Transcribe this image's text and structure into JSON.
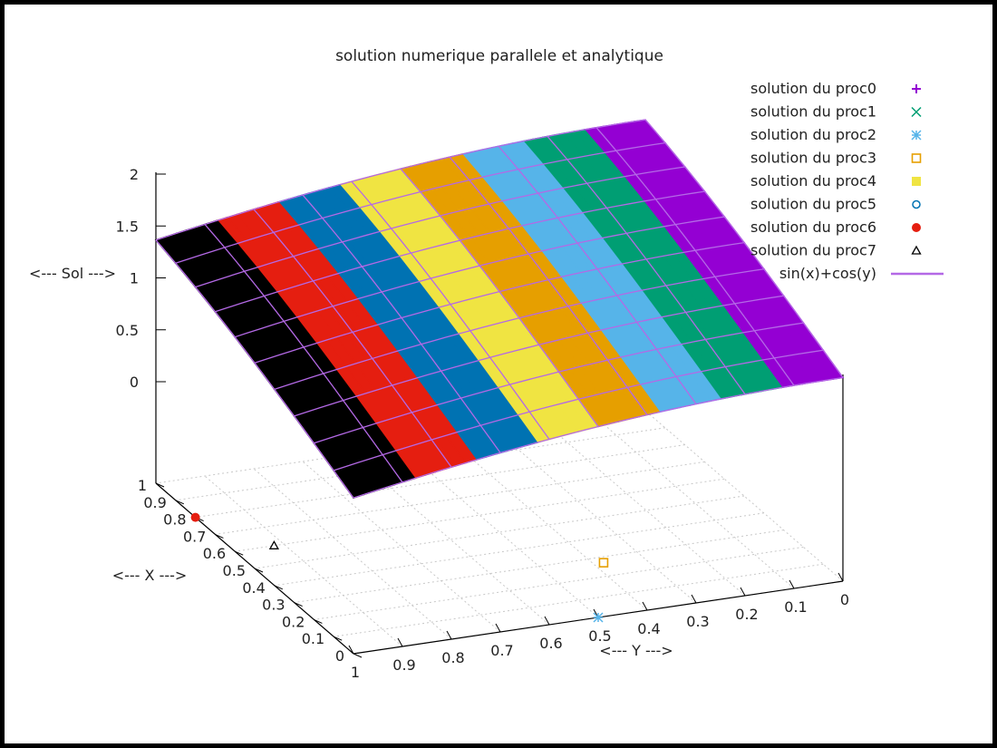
{
  "chart_data": {
    "type": "surface3d",
    "title": "solution numerique parallele et analytique",
    "xlabel": "<--- X --->",
    "ylabel": "<--- Y --->",
    "zlabel": "<--- Sol --->",
    "xlim": [
      0,
      1
    ],
    "ylim": [
      0,
      1
    ],
    "zlim": [
      0,
      2
    ],
    "x_ticks": [
      "0",
      "0.1",
      "0.2",
      "0.3",
      "0.4",
      "0.5",
      "0.6",
      "0.7",
      "0.8",
      "0.9",
      "1"
    ],
    "y_ticks": [
      "0",
      "0.1",
      "0.2",
      "0.3",
      "0.4",
      "0.5",
      "0.6",
      "0.7",
      "0.8",
      "0.9",
      "1"
    ],
    "z_ticks": [
      "0",
      "0.5",
      "1",
      "1.5",
      "2"
    ],
    "x_tick_values": [
      0,
      0.1,
      0.2,
      0.3,
      0.4,
      0.5,
      0.6,
      0.7,
      0.8,
      0.9,
      1
    ],
    "y_tick_values": [
      0,
      0.1,
      0.2,
      0.3,
      0.4,
      0.5,
      0.6,
      0.7,
      0.8,
      0.9,
      1
    ],
    "z_tick_values": [
      0,
      0.5,
      1,
      1.5,
      2
    ],
    "grid": true,
    "legend_position": "top-right",
    "analytic": {
      "name": "sin(x)+cos(y)",
      "color": "#b469e6"
    },
    "series": [
      {
        "name": "solution du proc0",
        "color": "#9400d3",
        "marker": "plus",
        "y_range": [
          0.0,
          0.125
        ]
      },
      {
        "name": "solution du proc1",
        "color": "#009e73",
        "marker": "cross",
        "y_range": [
          0.125,
          0.25
        ]
      },
      {
        "name": "solution du proc2",
        "color": "#56b4e9",
        "marker": "star",
        "y_range": [
          0.25,
          0.375
        ]
      },
      {
        "name": "solution du proc3",
        "color": "#e69f00",
        "marker": "square-open",
        "y_range": [
          0.375,
          0.5
        ]
      },
      {
        "name": "solution du proc4",
        "color": "#f0e442",
        "marker": "square-filled",
        "y_range": [
          0.5,
          0.625
        ]
      },
      {
        "name": "solution du proc5",
        "color": "#0072b2",
        "marker": "circle-open",
        "y_range": [
          0.625,
          0.75
        ]
      },
      {
        "name": "solution du proc6",
        "color": "#e51e10",
        "marker": "circle-filled",
        "y_range": [
          0.75,
          0.875
        ]
      },
      {
        "name": "solution du proc7",
        "color": "#000000",
        "marker": "triangle-open",
        "y_range": [
          0.875,
          1.0
        ]
      }
    ],
    "stray_points": [
      {
        "series": 2,
        "x": 0.0,
        "y": 0.5,
        "z": 0.0
      },
      {
        "series": 3,
        "x": 0.27,
        "y": 0.38,
        "z": 0.0
      },
      {
        "series": 6,
        "x": 0.8,
        "y": 1.0,
        "z": 0.0
      },
      {
        "series": 7,
        "x": 0.6,
        "y": 0.92,
        "z": 0.0
      }
    ]
  }
}
